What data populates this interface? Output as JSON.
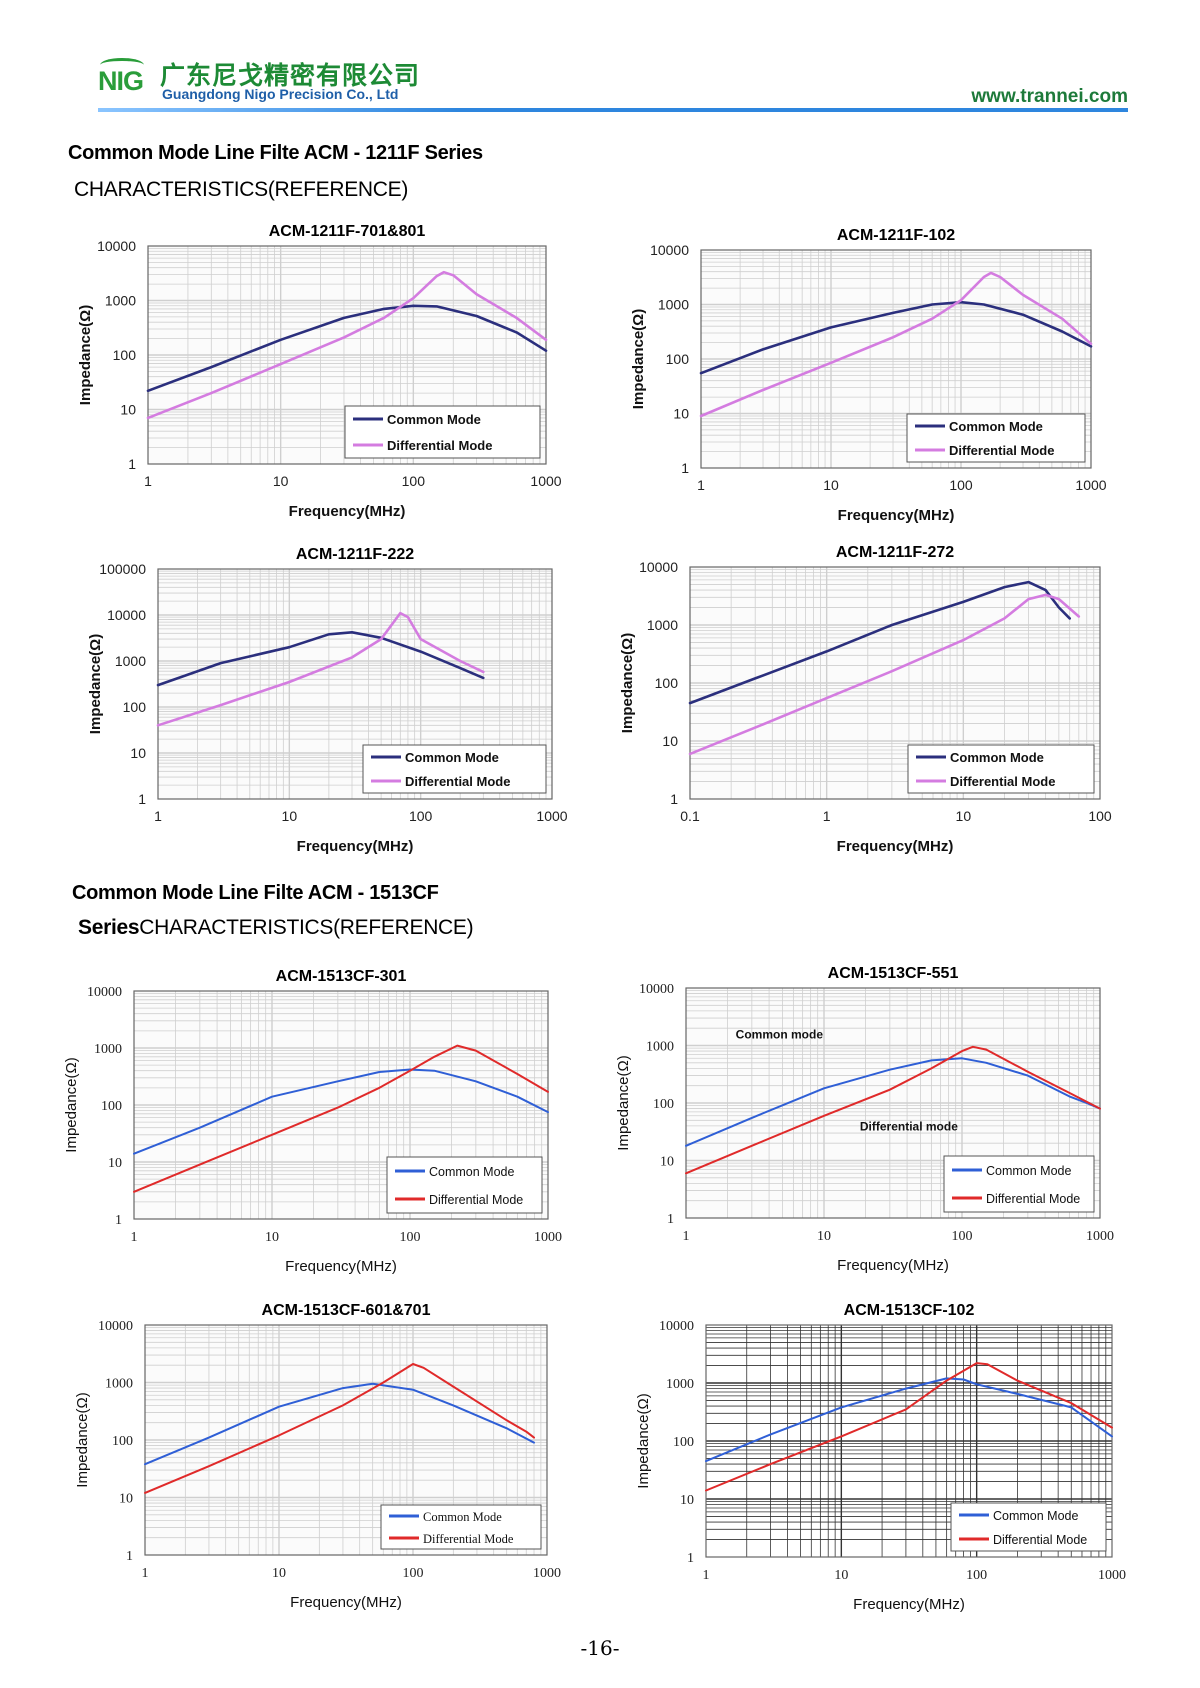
{
  "header": {
    "logo_text": "NIG",
    "company_cn": "广东尼戈精密有限公司",
    "company_en": "Guangdong Nigo Precision Co., Ltd",
    "website": "www.trannei.com",
    "colors": {
      "brand_green": "#1d8a35",
      "brand_blue": "#1f5fa8"
    }
  },
  "sections": [
    {
      "title": "Common Mode Line Filte ACM - 1211F Series",
      "subtitle": "CHARACTERISTICS(REFERENCE)"
    },
    {
      "title": "Common Mode Line Filte ACM - 1513CF",
      "subtitle_bold": "Series",
      "subtitle": "CHARACTERISTICS(REFERENCE)"
    }
  ],
  "page_number": "-16-",
  "chart_data": [
    {
      "type": "line",
      "title": "ACM-1211F-701&801",
      "xlabel": "Frequency(MHz)",
      "ylabel": "Impedance(Ω)",
      "xscale": "log",
      "yscale": "log",
      "xlim": [
        1,
        1000
      ],
      "ylim": [
        1,
        10000
      ],
      "xticks": [
        "1",
        "10",
        "100",
        "1000"
      ],
      "yticks": [
        "1",
        "10",
        "100",
        "1000",
        "10000"
      ],
      "legend": "bottom-right",
      "grid": true,
      "series": [
        {
          "name": "Common Mode",
          "color": "#2b2f7d",
          "points": [
            [
              1,
              22
            ],
            [
              3,
              60
            ],
            [
              10,
              190
            ],
            [
              30,
              480
            ],
            [
              60,
              700
            ],
            [
              100,
              800
            ],
            [
              150,
              780
            ],
            [
              300,
              520
            ],
            [
              600,
              260
            ],
            [
              1000,
              120
            ]
          ]
        },
        {
          "name": "Differential Mode",
          "color": "#d47ce0",
          "points": [
            [
              1,
              7
            ],
            [
              3,
              20
            ],
            [
              10,
              68
            ],
            [
              30,
              210
            ],
            [
              60,
              480
            ],
            [
              100,
              1100
            ],
            [
              150,
              2800
            ],
            [
              170,
              3300
            ],
            [
              200,
              2900
            ],
            [
              300,
              1300
            ],
            [
              600,
              480
            ],
            [
              1000,
              190
            ]
          ]
        }
      ]
    },
    {
      "type": "line",
      "title": "ACM-1211F-102",
      "xlabel": "Frequency(MHz)",
      "ylabel": "Impedance(Ω)",
      "xscale": "log",
      "yscale": "log",
      "xlim": [
        1,
        1000
      ],
      "ylim": [
        1,
        10000
      ],
      "xticks": [
        "1",
        "10",
        "100",
        "1000"
      ],
      "yticks": [
        "1",
        "10",
        "100",
        "1000",
        "10000"
      ],
      "legend": "bottom-right",
      "grid": true,
      "series": [
        {
          "name": "Common Mode",
          "color": "#2b2f7d",
          "points": [
            [
              1,
              55
            ],
            [
              3,
              150
            ],
            [
              10,
              380
            ],
            [
              30,
              700
            ],
            [
              60,
              1000
            ],
            [
              100,
              1100
            ],
            [
              150,
              1000
            ],
            [
              300,
              650
            ],
            [
              600,
              320
            ],
            [
              1000,
              170
            ]
          ]
        },
        {
          "name": "Differential Mode",
          "color": "#d47ce0",
          "points": [
            [
              1,
              9
            ],
            [
              3,
              27
            ],
            [
              10,
              85
            ],
            [
              30,
              250
            ],
            [
              60,
              550
            ],
            [
              100,
              1200
            ],
            [
              150,
              3200
            ],
            [
              170,
              3800
            ],
            [
              200,
              3200
            ],
            [
              300,
              1500
            ],
            [
              600,
              550
            ],
            [
              1000,
              190
            ]
          ]
        }
      ]
    },
    {
      "type": "line",
      "title": "ACM-1211F-222",
      "xlabel": "Frequency(MHz)",
      "ylabel": "Impedance(Ω)",
      "xscale": "log",
      "yscale": "log",
      "xlim": [
        1,
        1000
      ],
      "ylim": [
        1,
        100000
      ],
      "xticks": [
        "1",
        "10",
        "100",
        "1000"
      ],
      "yticks": [
        "1",
        "10",
        "100",
        "1000",
        "10000",
        "100000"
      ],
      "legend": "bottom-right",
      "grid": true,
      "series": [
        {
          "name": "Common Mode",
          "color": "#2b2f7d",
          "points": [
            [
              1,
              300
            ],
            [
              3,
              900
            ],
            [
              10,
              2000
            ],
            [
              20,
              3800
            ],
            [
              30,
              4200
            ],
            [
              50,
              3200
            ],
            [
              100,
              1600
            ],
            [
              200,
              700
            ],
            [
              300,
              430
            ]
          ]
        },
        {
          "name": "Differential Mode",
          "color": "#d47ce0",
          "points": [
            [
              1,
              40
            ],
            [
              3,
              110
            ],
            [
              10,
              350
            ],
            [
              30,
              1200
            ],
            [
              50,
              3000
            ],
            [
              70,
              11000
            ],
            [
              80,
              9000
            ],
            [
              100,
              3000
            ],
            [
              200,
              1000
            ],
            [
              300,
              580
            ]
          ]
        }
      ]
    },
    {
      "type": "line",
      "title": "ACM-1211F-272",
      "xlabel": "Frequency(MHz)",
      "ylabel": "Impedance(Ω)",
      "xscale": "log",
      "yscale": "log",
      "xlim": [
        0.1,
        100
      ],
      "ylim": [
        1,
        10000
      ],
      "xticks": [
        "0.1",
        "1",
        "10",
        "100"
      ],
      "yticks": [
        "1",
        "10",
        "100",
        "1000",
        "10000"
      ],
      "legend": "bottom-right",
      "grid": true,
      "series": [
        {
          "name": "Common Mode",
          "color": "#2b2f7d",
          "points": [
            [
              0.1,
              45
            ],
            [
              0.3,
              120
            ],
            [
              1,
              350
            ],
            [
              3,
              1000
            ],
            [
              10,
              2500
            ],
            [
              20,
              4500
            ],
            [
              30,
              5500
            ],
            [
              40,
              4000
            ],
            [
              50,
              2000
            ],
            [
              60,
              1300
            ]
          ]
        },
        {
          "name": "Differential Mode",
          "color": "#d47ce0",
          "points": [
            [
              0.1,
              6
            ],
            [
              0.3,
              17
            ],
            [
              1,
              55
            ],
            [
              3,
              160
            ],
            [
              10,
              550
            ],
            [
              20,
              1300
            ],
            [
              30,
              2800
            ],
            [
              40,
              3300
            ],
            [
              50,
              2800
            ],
            [
              70,
              1400
            ]
          ]
        }
      ]
    },
    {
      "type": "line",
      "title": "ACM-1513CF-301",
      "xlabel": "Frequency(MHz)",
      "ylabel": "Impedance(Ω)",
      "xscale": "log",
      "yscale": "log",
      "xlim": [
        1,
        1000
      ],
      "ylim": [
        1,
        10000
      ],
      "xticks": [
        "1",
        "10",
        "100",
        "1000"
      ],
      "yticks": [
        "1",
        "10",
        "100",
        "1000",
        "10000"
      ],
      "legend": "bottom-right",
      "grid": true,
      "series": [
        {
          "name": "Common Mode",
          "color": "#2f5fd6",
          "points": [
            [
              1,
              14
            ],
            [
              3,
              40
            ],
            [
              10,
              140
            ],
            [
              30,
              260
            ],
            [
              60,
              380
            ],
            [
              100,
              420
            ],
            [
              150,
              400
            ],
            [
              300,
              260
            ],
            [
              600,
              140
            ],
            [
              1000,
              75
            ]
          ]
        },
        {
          "name": "Differential Mode",
          "color": "#e02a2a",
          "points": [
            [
              1,
              3
            ],
            [
              3,
              9
            ],
            [
              10,
              30
            ],
            [
              30,
              90
            ],
            [
              60,
              200
            ],
            [
              100,
              400
            ],
            [
              150,
              700
            ],
            [
              220,
              1100
            ],
            [
              300,
              900
            ],
            [
              600,
              350
            ],
            [
              1000,
              170
            ]
          ]
        }
      ]
    },
    {
      "type": "line",
      "title": "ACM-1513CF-551",
      "xlabel": "Frequency(MHz)",
      "ylabel": "Impedance(Ω)",
      "xscale": "log",
      "yscale": "log",
      "xlim": [
        1,
        1000
      ],
      "ylim": [
        1,
        10000
      ],
      "xticks": [
        "1",
        "10",
        "100",
        "1000"
      ],
      "yticks": [
        "1",
        "10",
        "100",
        "1000",
        "10000"
      ],
      "legend": "bottom-right",
      "grid": true,
      "annotations": [
        "Common mode",
        "Differential mode"
      ],
      "series": [
        {
          "name": "Common Mode",
          "color": "#2f5fd6",
          "points": [
            [
              1,
              18
            ],
            [
              3,
              55
            ],
            [
              10,
              180
            ],
            [
              30,
              380
            ],
            [
              60,
              550
            ],
            [
              100,
              600
            ],
            [
              150,
              500
            ],
            [
              300,
              300
            ],
            [
              600,
              130
            ],
            [
              800,
              100
            ],
            [
              1000,
              80
            ]
          ]
        },
        {
          "name": "Differential Mode",
          "color": "#e02a2a",
          "points": [
            [
              1,
              6
            ],
            [
              3,
              18
            ],
            [
              10,
              60
            ],
            [
              30,
              170
            ],
            [
              60,
              400
            ],
            [
              100,
              800
            ],
            [
              120,
              950
            ],
            [
              150,
              850
            ],
            [
              300,
              350
            ],
            [
              600,
              150
            ],
            [
              1000,
              80
            ]
          ]
        }
      ]
    },
    {
      "type": "line",
      "title": "ACM-1513CF-601&701",
      "xlabel": "Frequency(MHz)",
      "ylabel": "Impedance(Ω)",
      "xscale": "log",
      "yscale": "log",
      "xlim": [
        1,
        1000
      ],
      "ylim": [
        1,
        10000
      ],
      "xticks": [
        "1",
        "10",
        "100",
        "1000"
      ],
      "yticks": [
        "1",
        "10",
        "100",
        "1000",
        "10000"
      ],
      "legend": "bottom-right",
      "grid": true,
      "series": [
        {
          "name": "Common Mode",
          "color": "#2f5fd6",
          "points": [
            [
              1,
              38
            ],
            [
              3,
              110
            ],
            [
              10,
              380
            ],
            [
              30,
              800
            ],
            [
              50,
              950
            ],
            [
              100,
              750
            ],
            [
              200,
              400
            ],
            [
              500,
              160
            ],
            [
              800,
              90
            ]
          ]
        },
        {
          "name": "Differential Mode",
          "color": "#e02a2a",
          "points": [
            [
              1,
              12
            ],
            [
              3,
              35
            ],
            [
              10,
              120
            ],
            [
              30,
              400
            ],
            [
              60,
              1000
            ],
            [
              100,
              2100
            ],
            [
              120,
              1800
            ],
            [
              200,
              850
            ],
            [
              500,
              220
            ],
            [
              700,
              140
            ],
            [
              800,
              110
            ]
          ]
        }
      ]
    },
    {
      "type": "line",
      "title": "ACM-1513CF-102",
      "xlabel": "Frequency(MHz)",
      "ylabel": "Impedance(Ω)",
      "xscale": "log",
      "yscale": "log",
      "xlim": [
        1,
        1000
      ],
      "ylim": [
        1,
        10000
      ],
      "xticks": [
        "1",
        "10",
        "100",
        "1000"
      ],
      "yticks": [
        "1",
        "10",
        "100",
        "1000",
        "10000"
      ],
      "legend": "bottom-right",
      "grid": true,
      "series": [
        {
          "name": "Common Mode",
          "color": "#2f5fd6",
          "points": [
            [
              1,
              45
            ],
            [
              3,
              130
            ],
            [
              10,
              380
            ],
            [
              30,
              800
            ],
            [
              60,
              1200
            ],
            [
              80,
              1150
            ],
            [
              100,
              950
            ],
            [
              200,
              650
            ],
            [
              500,
              380
            ],
            [
              1000,
              120
            ]
          ]
        },
        {
          "name": "Differential Mode",
          "color": "#e02a2a",
          "points": [
            [
              1,
              14
            ],
            [
              3,
              40
            ],
            [
              10,
              120
            ],
            [
              30,
              350
            ],
            [
              60,
              1100
            ],
            [
              100,
              2200
            ],
            [
              120,
              2100
            ],
            [
              200,
              1100
            ],
            [
              500,
              450
            ],
            [
              1000,
              170
            ]
          ]
        }
      ]
    }
  ]
}
